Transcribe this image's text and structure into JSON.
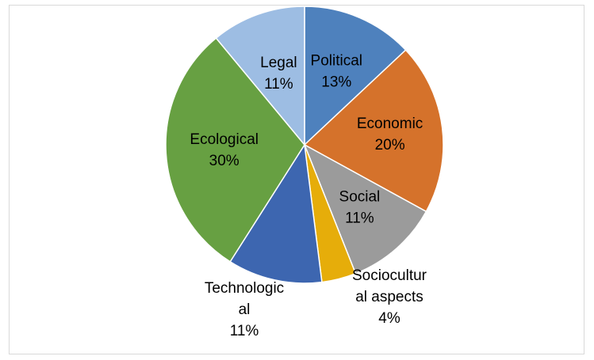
{
  "chart_data": {
    "type": "pie",
    "title": "",
    "categories": [
      "Political",
      "Economic",
      "Social",
      "Sociocultural aspects",
      "Technological",
      "Ecological",
      "Legal"
    ],
    "values": [
      13,
      20,
      11,
      4,
      11,
      30,
      11
    ],
    "value_labels": [
      "13%",
      "20%",
      "11%",
      "4%",
      "11%",
      "30%",
      "11%"
    ],
    "label_lines": [
      [
        "Political",
        "13%"
      ],
      [
        "Economic",
        "20%"
      ],
      [
        "Social",
        "11%"
      ],
      [
        "Sociocultur",
        "al aspects",
        "4%"
      ],
      [
        "Technologic",
        "al",
        "11%"
      ],
      [
        "Ecological",
        "30%"
      ],
      [
        "Legal",
        "11%"
      ]
    ],
    "colors": [
      "#4e81bd",
      "#d5722b",
      "#9b9b9b",
      "#e6ad0a",
      "#3d66b0",
      "#67a042",
      "#9dbde3"
    ],
    "start_angle_deg": 0,
    "direction": "clockwise",
    "legend": "none",
    "slice_border_color": "#ffffff"
  }
}
